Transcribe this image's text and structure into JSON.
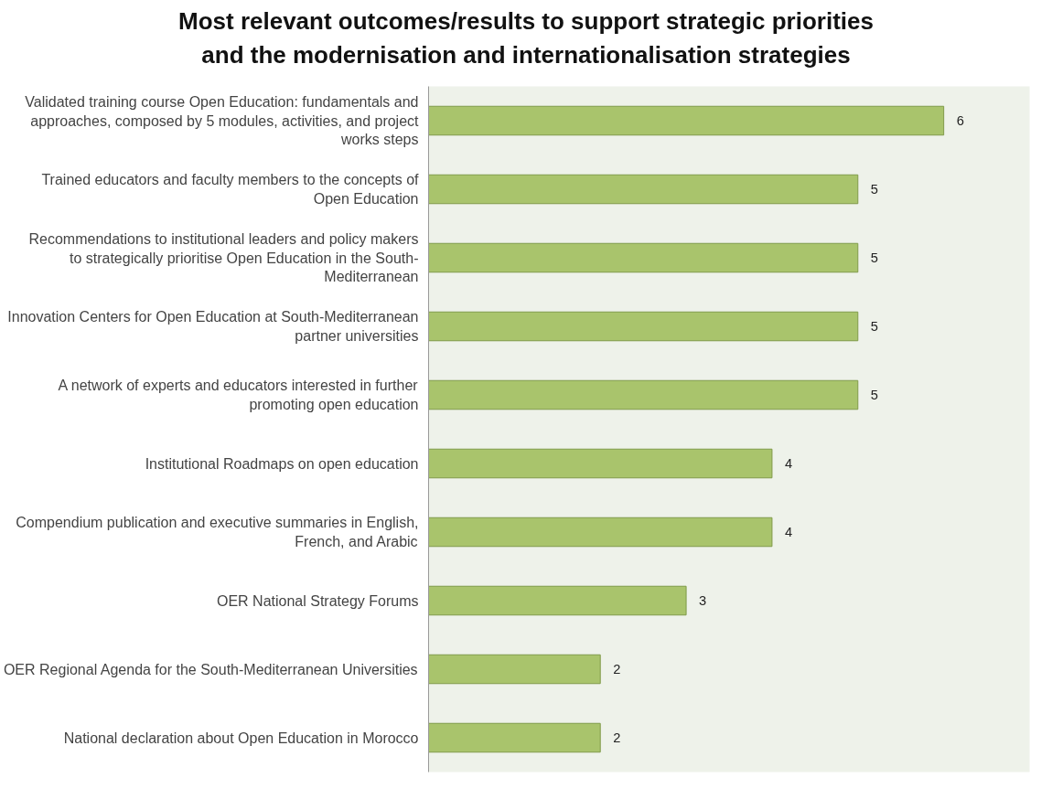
{
  "chart_data": {
    "type": "bar",
    "orientation": "horizontal",
    "title": "Most relevant outcomes/results to support strategic priorities and the modernisation and internationalisation strategies",
    "categories": [
      "Validated training course Open Education: fundamentals and approaches, composed by 5 modules, activities, and project works steps",
      "Trained educators and faculty members to the concepts of Open Education",
      "Recommendations to institutional leaders and policy makers to strategically prioritise Open Education in the South-Mediterranean",
      "Innovation Centers for Open Education at South-Mediterranean partner universities",
      "A network of experts and educators interested in further promoting open education",
      "Institutional Roadmaps on open education",
      "Compendium publication and executive summaries in English, French, and Arabic",
      "OER National Strategy Forums",
      "OER Regional Agenda for the South-Mediterranean Universities",
      "National declaration about Open Education in Morocco"
    ],
    "values": [
      6,
      5,
      5,
      5,
      5,
      4,
      4,
      3,
      2,
      2
    ],
    "color": "#a9c46c",
    "xlim": [
      0,
      7
    ],
    "data_labels": true,
    "grid": false,
    "tick_labels": "y"
  }
}
